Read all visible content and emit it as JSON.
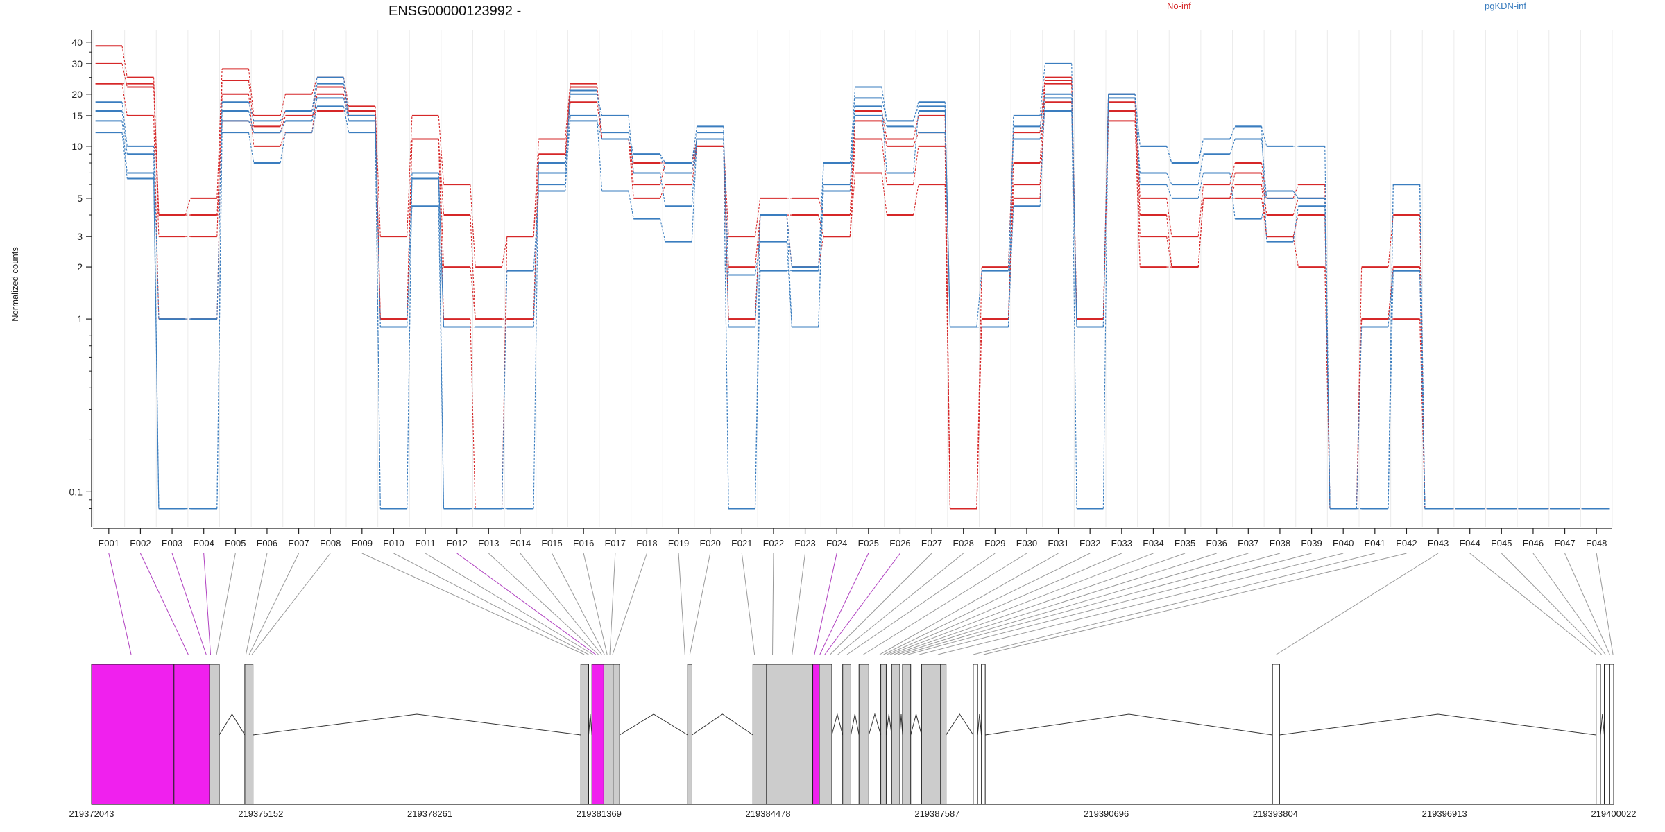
{
  "chart_data": {
    "type": "line",
    "title": "ENSG00000123992 -",
    "ylabel": "Normalized counts",
    "y_scale": "log",
    "ylim": [
      0.07,
      45
    ],
    "y_ticks": [
      0.1,
      1,
      2,
      3,
      5,
      10,
      15,
      20,
      30,
      40
    ],
    "y_tick_labels": [
      "0.1",
      "1",
      "2",
      "3",
      "5",
      "10",
      "15",
      "20",
      "30",
      "40"
    ],
    "grid": "vertical",
    "legend": [
      {
        "name": "No-inf",
        "color": "#d62728"
      },
      {
        "name": "pgKDN-inf",
        "color": "#3a7dbf"
      }
    ],
    "categories": [
      "E001",
      "E002",
      "E003",
      "E004",
      "E005",
      "E006",
      "E007",
      "E008",
      "E009",
      "E010",
      "E011",
      "E012",
      "E013",
      "E014",
      "E015",
      "E016",
      "E017",
      "E018",
      "E019",
      "E020",
      "E021",
      "E022",
      "E023",
      "E024",
      "E025",
      "E026",
      "E027",
      "E028",
      "E029",
      "E030",
      "E031",
      "E032",
      "E033",
      "E034",
      "E035",
      "E036",
      "E037",
      "E038",
      "E039",
      "E040",
      "E041",
      "E042",
      "E043",
      "E044",
      "E045",
      "E046",
      "E047",
      "E048"
    ],
    "series": [
      {
        "group": "No-inf",
        "color": "#d62728",
        "values": [
          38,
          25,
          4,
          5,
          28,
          15,
          20,
          25,
          17,
          3,
          15,
          6,
          2,
          3,
          11,
          23,
          11,
          8,
          8,
          11,
          3,
          5,
          5,
          4,
          16,
          11,
          15,
          0.08,
          2,
          12,
          25,
          1,
          20,
          5,
          3,
          6,
          8,
          5,
          6,
          0.08,
          2,
          4,
          0.08,
          0.08,
          0.08,
          0.08,
          0.08,
          0.08
        ]
      },
      {
        "group": "No-inf",
        "color": "#d62728",
        "values": [
          30,
          22,
          3,
          3,
          24,
          13,
          16,
          22,
          16,
          1,
          11,
          4,
          1,
          1,
          9,
          22,
          11,
          7,
          7,
          10,
          2,
          4,
          4,
          3,
          14,
          10,
          12,
          0.08,
          1,
          8,
          23,
          1,
          18,
          4,
          2,
          5,
          7,
          4,
          5,
          0.08,
          1,
          2,
          0.08,
          0.08,
          0.08,
          0.08,
          0.08,
          0.08
        ]
      },
      {
        "group": "No-inf",
        "color": "#d62728",
        "values": [
          23,
          15,
          1,
          1,
          20,
          10,
          12,
          20,
          15,
          1,
          11,
          2,
          1,
          1,
          8,
          18,
          11,
          5,
          6,
          10,
          1,
          4,
          2,
          3,
          11,
          6,
          10,
          0.08,
          1,
          6,
          18,
          1,
          14,
          2,
          2,
          5,
          6,
          3,
          4,
          0.08,
          1,
          1,
          0.08,
          0.08,
          0.08,
          0.08,
          0.08,
          0.08
        ]
      },
      {
        "group": "No-inf",
        "color": "#d62728",
        "values": [
          23,
          23,
          4,
          4,
          14,
          12,
          15,
          16,
          16,
          1,
          11,
          1,
          0.08,
          3,
          8,
          22,
          11,
          6,
          8,
          10,
          1,
          4,
          4,
          3,
          7,
          4,
          6,
          0.08,
          1,
          5,
          24,
          1,
          16,
          3,
          2,
          5,
          5,
          3,
          2,
          0.08,
          1,
          2,
          0.08,
          0.08,
          0.08,
          0.08,
          0.08,
          0.08
        ]
      },
      {
        "group": "pgKDN-inf",
        "color": "#3a7dbf",
        "values": [
          18,
          10,
          1,
          1,
          18,
          14,
          16,
          25,
          15,
          0.08,
          7,
          0.9,
          0.9,
          0.9,
          7,
          21,
          12,
          9,
          8,
          13,
          0.9,
          4,
          2,
          8,
          22,
          14,
          18,
          0.9,
          0.9,
          15,
          30,
          0.9,
          20,
          10,
          8,
          11,
          13,
          10,
          10,
          0.08,
          0.08,
          6,
          0.08,
          0.08,
          0.08,
          0.08,
          0.08,
          0.08
        ]
      },
      {
        "group": "pgKDN-inf",
        "color": "#3a7dbf",
        "values": [
          16,
          9,
          0.08,
          0.08,
          16,
          12,
          14,
          23,
          14,
          0.9,
          6.5,
          0.9,
          0.9,
          0.9,
          6,
          20,
          15,
          7,
          4.5,
          12,
          1.8,
          2.8,
          0.9,
          6,
          19,
          14,
          17,
          0.9,
          0.9,
          13,
          20,
          0.9,
          19,
          7,
          6,
          9,
          11,
          5,
          5,
          0.08,
          0.08,
          1.9,
          0.08,
          0.08,
          0.08,
          0.08,
          0.08,
          0.08
        ]
      },
      {
        "group": "pgKDN-inf",
        "color": "#3a7dbf",
        "values": [
          14,
          7,
          0.08,
          0.08,
          14,
          12,
          14,
          19,
          14,
          0.9,
          4.5,
          0.08,
          0.08,
          1.9,
          5.5,
          15,
          5.5,
          3.8,
          2.8,
          11,
          0.08,
          1.9,
          1.9,
          5.5,
          17,
          7,
          16,
          0.9,
          1.9,
          11,
          16,
          0.9,
          20,
          6,
          5,
          7,
          3.8,
          5.5,
          5,
          0.08,
          0.9,
          1.9,
          0.08,
          0.08,
          0.08,
          0.08,
          0.08,
          0.08
        ]
      },
      {
        "group": "pgKDN-inf",
        "color": "#3a7dbf",
        "values": [
          12,
          6.5,
          0.08,
          0.08,
          12,
          8,
          12,
          17,
          12,
          0.08,
          7,
          0.08,
          0.08,
          0.08,
          8,
          14,
          11,
          9,
          7,
          11,
          0.08,
          4,
          0.9,
          8,
          15,
          13,
          12,
          0.9,
          0.9,
          4.5,
          19,
          0.08,
          20,
          10,
          8,
          11,
          13,
          2.8,
          4.5,
          0.08,
          0.08,
          6,
          0.08,
          0.08,
          0.08,
          0.08,
          0.08,
          0.08
        ]
      }
    ],
    "gene_model": {
      "xlabel_ticks": [
        "219372043",
        "219375152",
        "219378261",
        "219381369",
        "219384478",
        "219387587",
        "219390696",
        "219393804",
        "219396913",
        "219400022"
      ],
      "xmin": 219372043,
      "xmax": 219400022,
      "exons": [
        {
          "start": 219372043,
          "end": 219373558,
          "fill": "#f020ee"
        },
        {
          "start": 219373558,
          "end": 219374213,
          "fill": "#f020ee"
        },
        {
          "start": 219374213,
          "end": 219374390,
          "fill": "#cccccc"
        },
        {
          "start": 219374860,
          "end": 219375010,
          "fill": "#cccccc"
        },
        {
          "start": 219381037,
          "end": 219381180,
          "fill": "#cccccc"
        },
        {
          "start": 219381240,
          "end": 219381460,
          "fill": "#f020ee"
        },
        {
          "start": 219381460,
          "end": 219381630,
          "fill": "#cccccc"
        },
        {
          "start": 219381630,
          "end": 219381750,
          "fill": "#cccccc"
        },
        {
          "start": 219383000,
          "end": 219383080,
          "fill": "#cccccc"
        },
        {
          "start": 219384200,
          "end": 219384450,
          "fill": "#cccccc"
        },
        {
          "start": 219384450,
          "end": 219385300,
          "fill": "#cccccc"
        },
        {
          "start": 219385300,
          "end": 219385420,
          "fill": "#f020ee"
        },
        {
          "start": 219385420,
          "end": 219385650,
          "fill": "#cccccc"
        },
        {
          "start": 219385850,
          "end": 219386000,
          "fill": "#cccccc"
        },
        {
          "start": 219386150,
          "end": 219386330,
          "fill": "#cccccc"
        },
        {
          "start": 219386550,
          "end": 219386650,
          "fill": "#cccccc"
        },
        {
          "start": 219386750,
          "end": 219386900,
          "fill": "#cccccc"
        },
        {
          "start": 219386950,
          "end": 219387100,
          "fill": "#cccccc"
        },
        {
          "start": 219387300,
          "end": 219387650,
          "fill": "#cccccc"
        },
        {
          "start": 219387650,
          "end": 219387750,
          "fill": "#cccccc"
        },
        {
          "start": 219388250,
          "end": 219388330,
          "fill": "#ffffff"
        },
        {
          "start": 219388400,
          "end": 219388470,
          "fill": "#ffffff"
        },
        {
          "start": 219393750,
          "end": 219393880,
          "fill": "#ffffff"
        },
        {
          "start": 219399700,
          "end": 219399780,
          "fill": "#ffffff"
        },
        {
          "start": 219399850,
          "end": 219399940,
          "fill": "#ffffff"
        },
        {
          "start": 219399950,
          "end": 219400022,
          "fill": "#ffffff"
        }
      ],
      "link_targets": [
        {
          "pos": 219372770,
          "color": "#b040c0"
        },
        {
          "pos": 219373820,
          "color": "#b040c0"
        },
        {
          "pos": 219374150,
          "color": "#b040c0"
        },
        {
          "pos": 219374230,
          "color": "#b040c0"
        },
        {
          "pos": 219374340,
          "color": "#9a9a9a"
        },
        {
          "pos": 219374880,
          "color": "#9a9a9a"
        },
        {
          "pos": 219374940,
          "color": "#9a9a9a"
        },
        {
          "pos": 219374990,
          "color": "#9a9a9a"
        },
        {
          "pos": 219381100,
          "color": "#9a9a9a"
        },
        {
          "pos": 219381180,
          "color": "#9a9a9a"
        },
        {
          "pos": 219381260,
          "color": "#9a9a9a"
        },
        {
          "pos": 219381310,
          "color": "#b040c0"
        },
        {
          "pos": 219381360,
          "color": "#9a9a9a"
        },
        {
          "pos": 219381420,
          "color": "#9a9a9a"
        },
        {
          "pos": 219381470,
          "color": "#9a9a9a"
        },
        {
          "pos": 219381520,
          "color": "#9a9a9a"
        },
        {
          "pos": 219381570,
          "color": "#9a9a9a"
        },
        {
          "pos": 219381620,
          "color": "#9a9a9a"
        },
        {
          "pos": 219382950,
          "color": "#9a9a9a"
        },
        {
          "pos": 219383040,
          "color": "#9a9a9a"
        },
        {
          "pos": 219384230,
          "color": "#9a9a9a"
        },
        {
          "pos": 219384560,
          "color": "#9a9a9a"
        },
        {
          "pos": 219384920,
          "color": "#9a9a9a"
        },
        {
          "pos": 219385330,
          "color": "#b040c0"
        },
        {
          "pos": 219385430,
          "color": "#b040c0"
        },
        {
          "pos": 219385520,
          "color": "#b040c0"
        },
        {
          "pos": 219385620,
          "color": "#9a9a9a"
        },
        {
          "pos": 219385760,
          "color": "#9a9a9a"
        },
        {
          "pos": 219385930,
          "color": "#9a9a9a"
        },
        {
          "pos": 219386230,
          "color": "#9a9a9a"
        },
        {
          "pos": 219386530,
          "color": "#9a9a9a"
        },
        {
          "pos": 219386600,
          "color": "#9a9a9a"
        },
        {
          "pos": 219386660,
          "color": "#9a9a9a"
        },
        {
          "pos": 219386720,
          "color": "#9a9a9a"
        },
        {
          "pos": 219386790,
          "color": "#9a9a9a"
        },
        {
          "pos": 219386860,
          "color": "#9a9a9a"
        },
        {
          "pos": 219386950,
          "color": "#9a9a9a"
        },
        {
          "pos": 219387050,
          "color": "#9a9a9a"
        },
        {
          "pos": 219387260,
          "color": "#9a9a9a"
        },
        {
          "pos": 219387600,
          "color": "#9a9a9a"
        },
        {
          "pos": 219388250,
          "color": "#9a9a9a"
        },
        {
          "pos": 219388440,
          "color": "#9a9a9a"
        },
        {
          "pos": 219393820,
          "color": "#9a9a9a"
        },
        {
          "pos": 219399700,
          "color": "#9a9a9a"
        },
        {
          "pos": 219399800,
          "color": "#9a9a9a"
        },
        {
          "pos": 219399870,
          "color": "#9a9a9a"
        },
        {
          "pos": 219399950,
          "color": "#9a9a9a"
        },
        {
          "pos": 219400010,
          "color": "#9a9a9a"
        }
      ]
    }
  }
}
